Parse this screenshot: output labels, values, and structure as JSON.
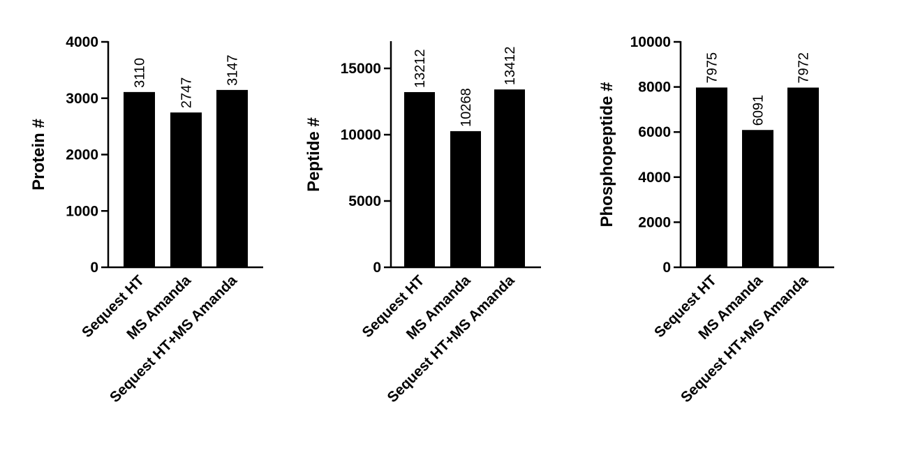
{
  "chart_data": [
    {
      "type": "bar",
      "title": "",
      "xlabel": "",
      "ylabel": "Protein #",
      "categories": [
        "Sequest HT",
        "MS Amanda",
        "Sequest HT+MS Amanda"
      ],
      "values": [
        3110,
        2747,
        3147
      ],
      "value_labels": [
        "3110",
        "2747",
        "3147"
      ],
      "ylim": [
        0,
        4000
      ],
      "yticks": [
        0,
        1000,
        2000,
        3000,
        4000
      ],
      "ytick_labels": [
        "0",
        "1000",
        "2000",
        "3000",
        "4000"
      ],
      "bar_color": "#000000",
      "grid": false,
      "legend": "none"
    },
    {
      "type": "bar",
      "title": "",
      "xlabel": "",
      "ylabel": "Peptide #",
      "categories": [
        "Sequest HT",
        "MS Amanda",
        "Sequest HT+MS Amanda"
      ],
      "values": [
        13212,
        10268,
        13412
      ],
      "value_labels": [
        "13212",
        "10268",
        "13412"
      ],
      "ylim": [
        0,
        17000
      ],
      "yticks": [
        0,
        5000,
        10000,
        15000
      ],
      "ytick_labels": [
        "0",
        "5000",
        "10000",
        "15000"
      ],
      "bar_color": "#000000",
      "grid": false,
      "legend": "none"
    },
    {
      "type": "bar",
      "title": "",
      "xlabel": "",
      "ylabel": "Phosphopeptide #",
      "categories": [
        "Sequest HT",
        "MS Amanda",
        "Sequest HT+MS Amanda"
      ],
      "values": [
        7975,
        6091,
        7972
      ],
      "value_labels": [
        "7975",
        "6091",
        "7972"
      ],
      "ylim": [
        0,
        10000
      ],
      "yticks": [
        0,
        2000,
        4000,
        6000,
        8000,
        10000
      ],
      "ytick_labels": [
        "0",
        "2000",
        "4000",
        "6000",
        "8000",
        "10000"
      ],
      "bar_color": "#000000",
      "grid": false,
      "legend": "none"
    }
  ]
}
